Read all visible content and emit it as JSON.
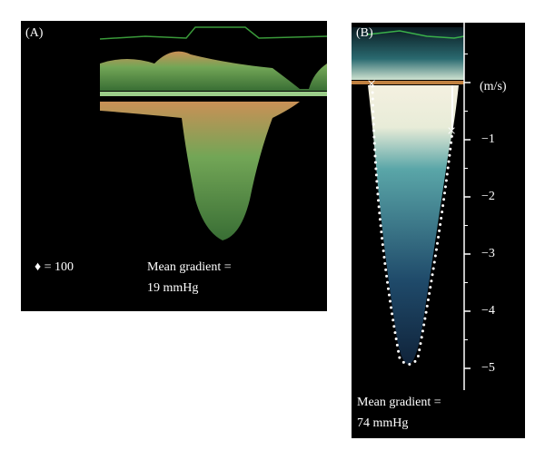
{
  "panel_a": {
    "label": "(A)",
    "legend": "♦ = 100",
    "gradient_title": "Mean gradient =",
    "gradient_value": "19 mmHg"
  },
  "panel_b": {
    "label": "(B)",
    "unit": "(m/s)",
    "scale_labels": [
      "−1",
      "−2",
      "−3",
      "−4",
      "−5"
    ],
    "gradient_title": "Mean gradient =",
    "gradient_value": "74 mmHg"
  }
}
